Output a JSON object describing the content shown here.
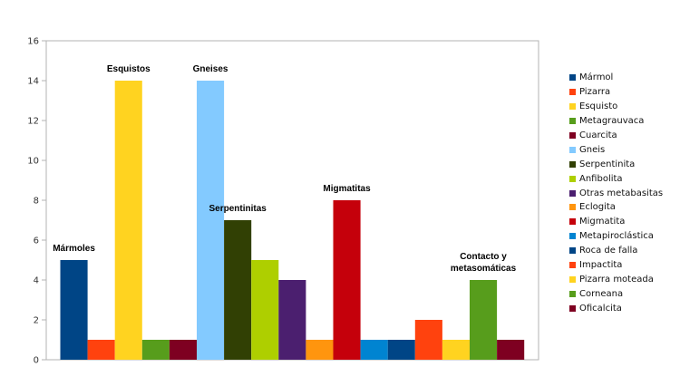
{
  "chart_data": {
    "type": "bar",
    "ylim": [
      0,
      16
    ],
    "yticks": [
      0,
      2,
      4,
      6,
      8,
      10,
      12,
      14,
      16
    ],
    "grid": false,
    "legend_placement": "right",
    "series": [
      {
        "name": "Mármol",
        "value": 5,
        "color": "#004586"
      },
      {
        "name": "Pizarra",
        "value": 1,
        "color": "#ff420e"
      },
      {
        "name": "Esquisto",
        "value": 14,
        "color": "#ffd320"
      },
      {
        "name": "Metagrauvaca",
        "value": 1,
        "color": "#579d1c"
      },
      {
        "name": "Cuarcita",
        "value": 1,
        "color": "#7e0021"
      },
      {
        "name": "Gneis",
        "value": 14,
        "color": "#83caff"
      },
      {
        "name": "Serpentinita",
        "value": 7,
        "color": "#314004"
      },
      {
        "name": "Anfibolita",
        "value": 5,
        "color": "#aecf00"
      },
      {
        "name": "Otras metabasitas",
        "value": 4,
        "color": "#4b1f6f"
      },
      {
        "name": "Eclogita",
        "value": 1,
        "color": "#ff950e"
      },
      {
        "name": "Migmatita",
        "value": 8,
        "color": "#c5000b"
      },
      {
        "name": "Metapiroclástica",
        "value": 1,
        "color": "#0084d1"
      },
      {
        "name": "Roca de falla",
        "value": 1,
        "color": "#004586"
      },
      {
        "name": "Impactita",
        "value": 2,
        "color": "#ff420e"
      },
      {
        "name": "Pizarra moteada",
        "value": 1,
        "color": "#ffd320"
      },
      {
        "name": "Corneana",
        "value": 4,
        "color": "#579d1c"
      },
      {
        "name": "Oficalcita",
        "value": 1,
        "color": "#7e0021"
      }
    ],
    "annotations": [
      {
        "text": [
          "Mármoles"
        ],
        "bar": 0
      },
      {
        "text": [
          "Esquistos"
        ],
        "bar": 2
      },
      {
        "text": [
          "Gneises"
        ],
        "bar": 5
      },
      {
        "text": [
          "Serpentinitas"
        ],
        "bar": 6
      },
      {
        "text": [
          "Migmatitas"
        ],
        "bar": 10
      },
      {
        "text": [
          "Contacto y",
          "metasomáticas"
        ],
        "bar": 15
      }
    ]
  }
}
